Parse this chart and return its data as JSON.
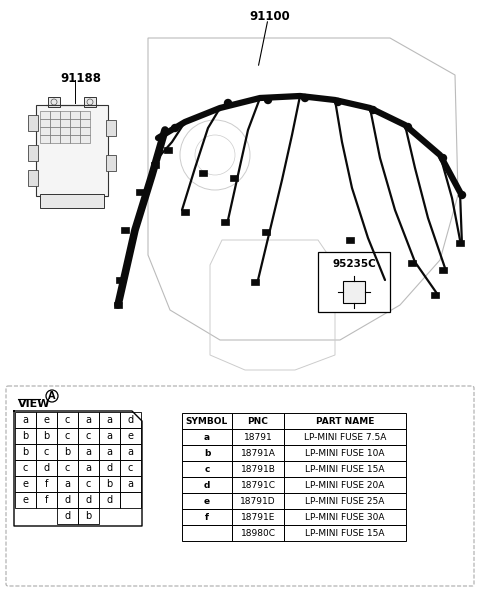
{
  "bg_color": "#ffffff",
  "title_label": "91100",
  "label_91188": "91188",
  "label_95235C": "95235C",
  "view_label": "VIEW",
  "view_circle_label": "A",
  "table_headers": [
    "SYMBOL",
    "PNC",
    "PART NAME"
  ],
  "table_rows": [
    [
      "a",
      "18791",
      "LP-MINI FUSE 7.5A"
    ],
    [
      "b",
      "18791A",
      "LP-MINI FUSE 10A"
    ],
    [
      "c",
      "18791B",
      "LP-MINI FUSE 15A"
    ],
    [
      "d",
      "18791C",
      "LP-MINI FUSE 20A"
    ],
    [
      "e",
      "18791D",
      "LP-MINI FUSE 25A"
    ],
    [
      "f",
      "18791E",
      "LP-MINI FUSE 30A"
    ],
    [
      "",
      "18980C",
      "LP-MINI FUSE 15A"
    ]
  ],
  "fuse_grid": [
    [
      "a",
      "e",
      "c",
      "a",
      "a",
      "d"
    ],
    [
      "b",
      "b",
      "c",
      "c",
      "a",
      "e"
    ],
    [
      "b",
      "c",
      "b",
      "a",
      "a",
      "a"
    ],
    [
      "c",
      "d",
      "c",
      "a",
      "d",
      "c"
    ],
    [
      "e",
      "f",
      "a",
      "c",
      "b",
      "a"
    ],
    [
      "e",
      "f",
      "d",
      "d",
      "d",
      ""
    ]
  ],
  "fuse_bottom": [
    "d",
    "b"
  ],
  "border_color": "#000000",
  "text_color": "#000000",
  "dashed_border_color": "#aaaaaa"
}
